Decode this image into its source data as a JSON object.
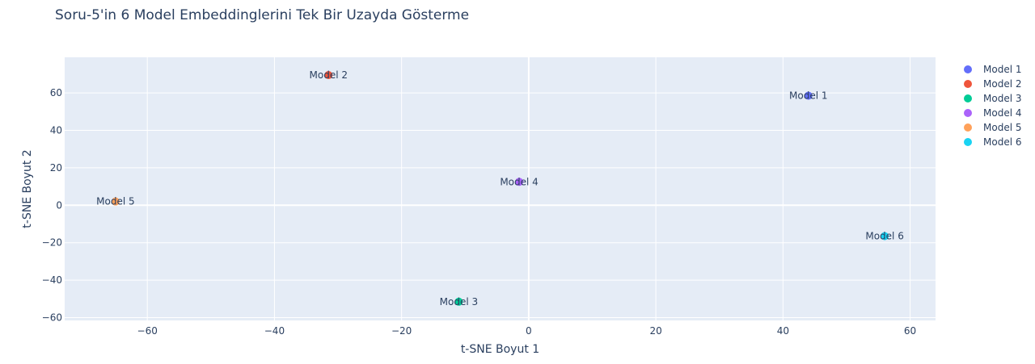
{
  "chart_data": {
    "type": "scatter",
    "title": "Soru-5'in 6 Model Embeddinglerini Tek Bir Uzayda Gösterme",
    "xlabel": "t-SNE Boyut 1",
    "ylabel": "t-SNE Boyut 2",
    "xlim": [
      -73,
      64
    ],
    "ylim": [
      -61.5,
      79
    ],
    "xticks": [
      -60,
      -40,
      -20,
      0,
      20,
      40,
      60
    ],
    "xtick_labels": [
      "−60",
      "−40",
      "−20",
      "0",
      "20",
      "40",
      "60"
    ],
    "yticks": [
      -60,
      -40,
      -20,
      0,
      20,
      40,
      60
    ],
    "ytick_labels": [
      "−60",
      "−40",
      "−20",
      "0",
      "20",
      "40",
      "60"
    ],
    "grid": true,
    "legend_position": "right",
    "series": [
      {
        "name": "Model 1",
        "color": "#636efa",
        "x": [
          44.0
        ],
        "y": [
          58.5
        ],
        "labels": [
          "Model 1"
        ]
      },
      {
        "name": "Model 2",
        "color": "#EF553B",
        "x": [
          -31.5
        ],
        "y": [
          69.5
        ],
        "labels": [
          "Model 2"
        ]
      },
      {
        "name": "Model 3",
        "color": "#00cc96",
        "x": [
          -11.0
        ],
        "y": [
          -51.5
        ],
        "labels": [
          "Model 3"
        ]
      },
      {
        "name": "Model 4",
        "color": "#ab63fa",
        "x": [
          -1.5
        ],
        "y": [
          12.5
        ],
        "labels": [
          "Model 4"
        ]
      },
      {
        "name": "Model 5",
        "color": "#FFA15A",
        "x": [
          -65.0
        ],
        "y": [
          2.0
        ],
        "labels": [
          "Model 5"
        ]
      },
      {
        "name": "Model 6",
        "color": "#19d3f3",
        "x": [
          56.0
        ],
        "y": [
          -16.5
        ],
        "labels": [
          "Model 6"
        ]
      }
    ]
  }
}
